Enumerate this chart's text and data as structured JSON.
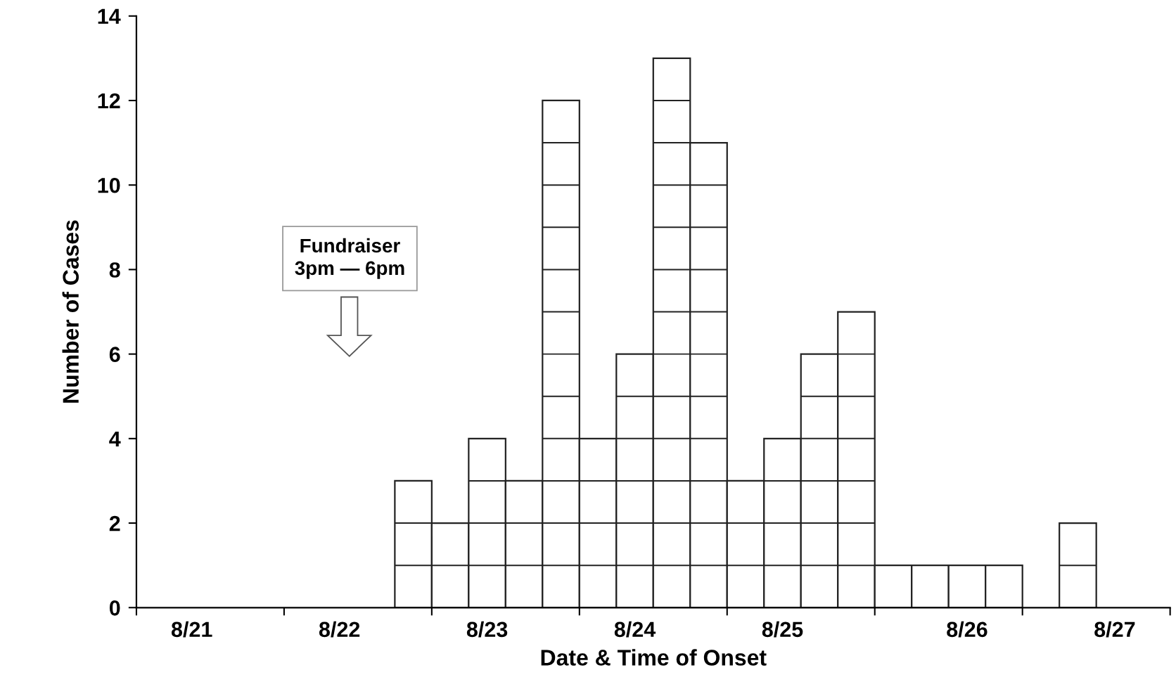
{
  "chart_data": {
    "type": "bar",
    "xlabel": "Date & Time of Onset",
    "ylabel": "Number of Cases",
    "categories": [
      null,
      "8/21",
      null,
      null,
      null,
      "8/22",
      null,
      null,
      null,
      "8/23",
      null,
      null,
      null,
      "8/24",
      null,
      null,
      null,
      "8/25",
      null,
      null,
      null,
      null,
      "8/26",
      null,
      null,
      null,
      "8/27",
      null
    ],
    "values": [
      0,
      0,
      0,
      0,
      0,
      0,
      0,
      3,
      2,
      4,
      3,
      12,
      4,
      6,
      13,
      11,
      3,
      4,
      6,
      7,
      1,
      1,
      1,
      1,
      0,
      2,
      0,
      0
    ],
    "color": "#ffffff",
    "ylim": [
      0,
      14
    ],
    "yticks": [
      0,
      2,
      4,
      6,
      8,
      10,
      12,
      14
    ],
    "annotations": [
      "Fundraiser\n3pm — 6pm"
    ]
  }
}
